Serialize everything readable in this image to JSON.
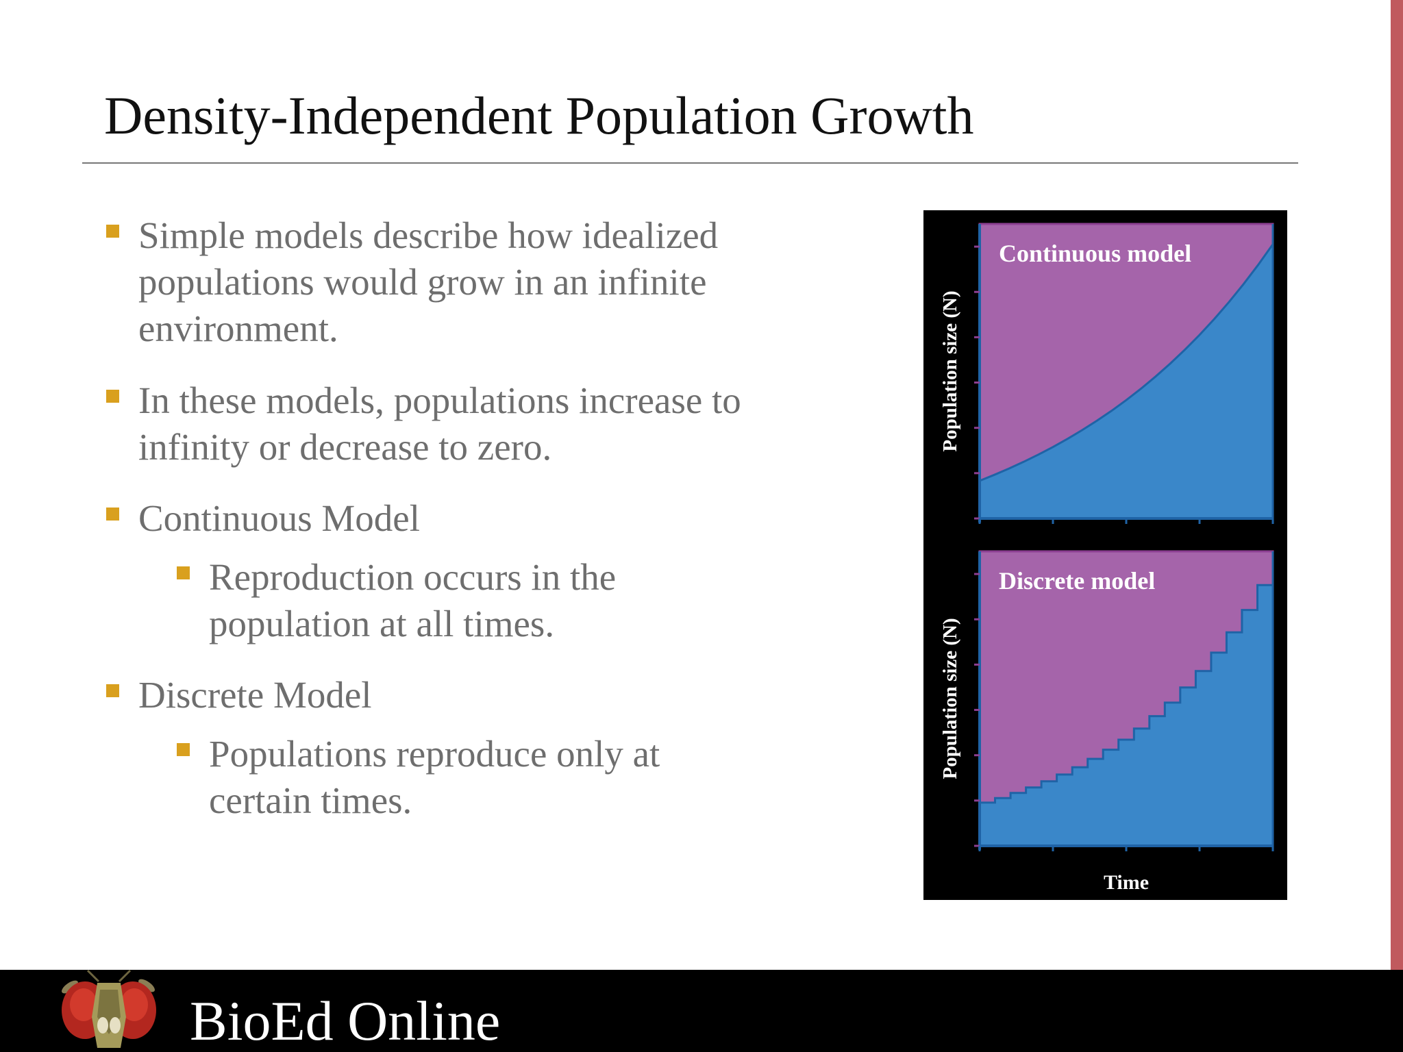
{
  "slide": {
    "title": "Density-Independent Population Growth"
  },
  "bullets": [
    {
      "level": 1,
      "lines": [
        "Simple models describe how idealized",
        "populations would grow in an infinite",
        "environment."
      ]
    },
    {
      "level": 1,
      "lines": [
        "In these models, populations increase to",
        "infinity or decrease to zero."
      ]
    },
    {
      "level": 1,
      "lines": [
        "Continuous Model"
      ]
    },
    {
      "level": 2,
      "lines": [
        "Reproduction occurs in the",
        "population at all times."
      ]
    },
    {
      "level": 1,
      "lines": [
        "Discrete Model"
      ]
    },
    {
      "level": 2,
      "lines": [
        "Populations reproduce only at",
        "certain times."
      ]
    }
  ],
  "colors": {
    "bullet_marker": "#d9a01e",
    "accent_bar": "#c05a5e",
    "plot_background": "#a564aa",
    "fill": "#3a87c9",
    "curve": "#1f63a6"
  },
  "chart_data": [
    {
      "type": "area",
      "title": "Continuous model",
      "ylabel": "Population size (N)",
      "xlabel": "",
      "x_ticks": 5,
      "y_ticks": 7,
      "x": [
        0,
        0.05,
        0.1,
        0.15,
        0.2,
        0.25,
        0.3,
        0.35,
        0.4,
        0.45,
        0.5,
        0.55,
        0.6,
        0.65,
        0.7,
        0.75,
        0.8,
        0.85,
        0.9,
        0.95,
        1
      ],
      "y": [
        0.16,
        0.1851,
        0.2118,
        0.2403,
        0.2708,
        0.3033,
        0.3381,
        0.3752,
        0.4148,
        0.4571,
        0.5024,
        0.5507,
        0.6023,
        0.6574,
        0.7163,
        0.7791,
        0.8463,
        0.918,
        0.9947,
        1.0765,
        1.164
      ],
      "ylim": [
        0,
        1.25
      ]
    },
    {
      "type": "area",
      "title": "Discrete model",
      "ylabel": "Population size (N)",
      "xlabel": "Time",
      "x_ticks": 5,
      "y_ticks": 7,
      "steps": 19,
      "y": [
        0.16,
        0.177,
        0.196,
        0.216,
        0.239,
        0.264,
        0.291,
        0.322,
        0.356,
        0.393,
        0.434,
        0.48,
        0.53,
        0.586,
        0.647,
        0.715,
        0.79,
        0.873,
        0.965,
        1.066
      ],
      "ylim": [
        0,
        1.09
      ]
    }
  ],
  "footer": {
    "brand": "BioEd Online",
    "logo_icon": "fruit-fly-icon"
  }
}
